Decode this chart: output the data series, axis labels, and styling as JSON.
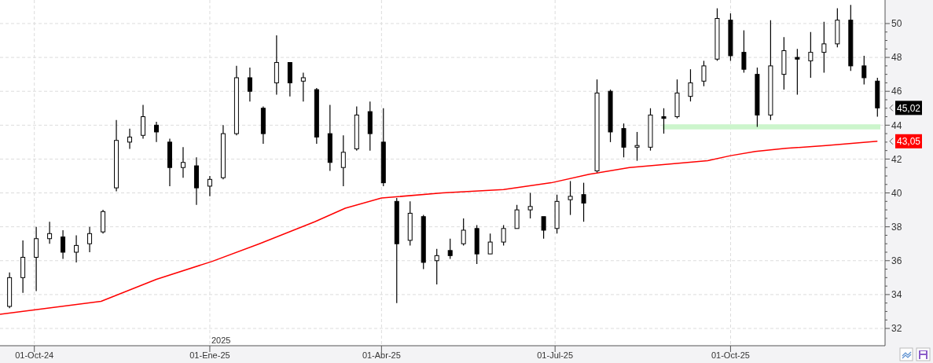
{
  "chart_data": {
    "type": "candlestick",
    "color": "#000000",
    "x": [
      "2024-09-18",
      "2024-09-25",
      "2024-10-02",
      "2024-10-09",
      "2024-10-16",
      "2024-10-23",
      "2024-10-30",
      "2024-11-06",
      "2024-11-13",
      "2024-11-20",
      "2024-11-27",
      "2024-12-04",
      "2024-12-11",
      "2024-12-18",
      "2024-12-25",
      "2025-01-01",
      "2025-01-08",
      "2025-01-15",
      "2025-01-22",
      "2025-01-29",
      "2025-02-05",
      "2025-02-12",
      "2025-02-19",
      "2025-02-26",
      "2025-03-05",
      "2025-03-12",
      "2025-03-19",
      "2025-03-26",
      "2025-04-02",
      "2025-04-09",
      "2025-04-16",
      "2025-04-23",
      "2025-04-30",
      "2025-05-07",
      "2025-05-14",
      "2025-05-21",
      "2025-05-28",
      "2025-06-04",
      "2025-06-11",
      "2025-06-18",
      "2025-06-25",
      "2025-07-02",
      "2025-07-09",
      "2025-07-16",
      "2025-07-23",
      "2025-07-30",
      "2025-08-06",
      "2025-08-13",
      "2025-08-20",
      "2025-08-27",
      "2025-09-03",
      "2025-09-10",
      "2025-09-17",
      "2025-09-24",
      "2025-10-01",
      "2025-10-08",
      "2025-10-15",
      "2025-10-22",
      "2025-10-29",
      "2025-11-05",
      "2025-11-12",
      "2025-11-19",
      "2025-11-26",
      "2025-12-03",
      "2025-12-10",
      "2025-12-17"
    ],
    "ohlc": [
      [
        33.3,
        35.3,
        33.2,
        35.0
      ],
      [
        35.0,
        37.2,
        34.1,
        36.2
      ],
      [
        36.2,
        38.0,
        34.2,
        37.3
      ],
      [
        37.3,
        38.3,
        37.0,
        37.6
      ],
      [
        37.4,
        37.8,
        36.1,
        36.5
      ],
      [
        36.5,
        37.5,
        35.9,
        36.9
      ],
      [
        37.0,
        38.0,
        36.5,
        37.6
      ],
      [
        37.7,
        39.0,
        37.6,
        38.9
      ],
      [
        40.3,
        44.3,
        40.1,
        43.1
      ],
      [
        43.0,
        43.8,
        42.6,
        43.3
      ],
      [
        43.4,
        45.2,
        43.2,
        44.5
      ],
      [
        44.0,
        44.2,
        43.0,
        43.6
      ],
      [
        43.0,
        43.2,
        40.4,
        41.5
      ],
      [
        41.5,
        42.7,
        40.9,
        41.8
      ],
      [
        41.6,
        42.1,
        39.3,
        40.3
      ],
      [
        40.4,
        41.0,
        39.8,
        40.8
      ],
      [
        40.9,
        44.0,
        40.8,
        43.5
      ],
      [
        43.5,
        47.5,
        43.4,
        46.8
      ],
      [
        46.8,
        47.4,
        45.4,
        46.0
      ],
      [
        45.0,
        45.1,
        42.9,
        43.5
      ],
      [
        46.5,
        49.3,
        45.8,
        47.7
      ],
      [
        47.7,
        47.7,
        45.7,
        46.5
      ],
      [
        46.6,
        47.1,
        45.4,
        46.8
      ],
      [
        46.1,
        46.2,
        42.9,
        43.3
      ],
      [
        43.5,
        45.2,
        41.3,
        41.8
      ],
      [
        41.5,
        43.4,
        40.4,
        42.4
      ],
      [
        42.6,
        45.1,
        42.5,
        44.6
      ],
      [
        44.8,
        45.4,
        42.5,
        43.5
      ],
      [
        43.0,
        45.0,
        40.4,
        40.6
      ],
      [
        39.5,
        39.7,
        33.5,
        37.0
      ],
      [
        37.2,
        39.5,
        36.9,
        38.8
      ],
      [
        38.6,
        38.7,
        35.5,
        35.9
      ],
      [
        36.0,
        36.7,
        34.6,
        36.3
      ],
      [
        36.6,
        37.3,
        36.1,
        36.3
      ],
      [
        37.0,
        38.5,
        36.9,
        37.8
      ],
      [
        37.9,
        38.1,
        35.8,
        36.4
      ],
      [
        36.4,
        37.6,
        36.4,
        37.1
      ],
      [
        37.1,
        38.1,
        36.9,
        37.9
      ],
      [
        37.9,
        39.3,
        37.9,
        39.0
      ],
      [
        39.0,
        40.0,
        38.5,
        39.2
      ],
      [
        38.6,
        38.6,
        37.3,
        37.8
      ],
      [
        37.9,
        39.9,
        37.6,
        39.5
      ],
      [
        39.6,
        40.7,
        38.7,
        39.8
      ],
      [
        39.9,
        40.6,
        38.3,
        39.4
      ],
      [
        41.3,
        46.7,
        41.2,
        45.9
      ],
      [
        46.0,
        46.1,
        43.0,
        43.6
      ],
      [
        43.8,
        44.1,
        42.1,
        42.7
      ],
      [
        42.7,
        43.6,
        41.9,
        42.8
      ],
      [
        42.7,
        45.0,
        42.5,
        44.6
      ],
      [
        44.5,
        45.0,
        43.5,
        44.4
      ],
      [
        44.5,
        46.7,
        44.4,
        45.9
      ],
      [
        45.7,
        47.3,
        45.4,
        46.5
      ],
      [
        46.6,
        47.8,
        46.3,
        47.5
      ],
      [
        47.9,
        50.9,
        47.8,
        50.3
      ],
      [
        50.2,
        50.6,
        47.8,
        48.1
      ],
      [
        48.3,
        49.6,
        47.1,
        47.3
      ],
      [
        47.0,
        47.4,
        43.9,
        44.6
      ],
      [
        44.6,
        50.2,
        44.3,
        47.5
      ],
      [
        47.0,
        49.2,
        46.1,
        48.4
      ],
      [
        48.0,
        48.5,
        45.8,
        47.9
      ],
      [
        47.8,
        49.5,
        46.8,
        48.3
      ],
      [
        48.3,
        50.1,
        47.1,
        48.8
      ],
      [
        48.8,
        50.9,
        48.6,
        50.2
      ],
      [
        50.2,
        51.1,
        47.2,
        47.5
      ],
      [
        47.5,
        48.1,
        46.4,
        46.8
      ],
      [
        46.6,
        46.8,
        44.5,
        45.02
      ]
    ],
    "series": [
      {
        "type": "line",
        "color": "#ff0000",
        "x": [
          "2024-09-13",
          "2024-11-05",
          "2024-12-04",
          "2025-01-02",
          "2025-01-27",
          "2025-02-25",
          "2025-03-13",
          "2025-04-01",
          "2025-05-03",
          "2025-06-04",
          "2025-06-29",
          "2025-07-19",
          "2025-08-09",
          "2025-08-29",
          "2025-09-19",
          "2025-10-01",
          "2025-10-14",
          "2025-10-30",
          "2025-11-20",
          "2025-12-17"
        ],
        "values": [
          32.84,
          33.6,
          34.9,
          35.95,
          37.0,
          38.3,
          39.1,
          39.7,
          40.0,
          40.2,
          40.6,
          41.1,
          41.5,
          41.7,
          41.9,
          42.2,
          42.45,
          42.63,
          42.8,
          43.05
        ]
      }
    ],
    "xlim": [
      "2024-09-13",
      "2025-12-21"
    ],
    "xticks": [
      {
        "value": "2024-10-01",
        "label": "01-Oct-24"
      },
      {
        "value": "2025-01-01",
        "label": "01-Ene-25"
      },
      {
        "value": "2025-04-01",
        "label": "01-Abr-25"
      },
      {
        "value": "2025-07-01",
        "label": "01-Jul-25"
      },
      {
        "value": "2025-10-01",
        "label": "01-Oct-25"
      }
    ],
    "ylim": [
      30.98,
      51.39
    ],
    "yticks": [
      32,
      34,
      36,
      38,
      40,
      42,
      44,
      46,
      48,
      50
    ],
    "grid": true,
    "bands": [
      {
        "axis": "y",
        "from": 43.75,
        "to": 44.05,
        "color": "#ccf5cc"
      }
    ],
    "annotations": [
      "45,02",
      "43,05",
      "2025"
    ]
  }
}
